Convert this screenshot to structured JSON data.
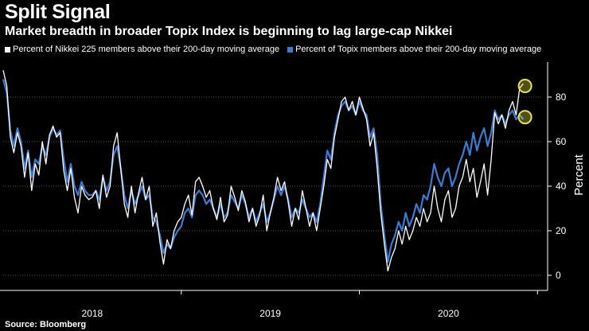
{
  "header": {
    "title": "Split Signal",
    "subtitle": "Market breadth in broader Topix Index is beginning to lag large-cap Nikkei"
  },
  "footer": {
    "source": "Source: Bloomberg"
  },
  "colors": {
    "nikkei": "#ffffff",
    "topix": "#3a7bd5",
    "marker": "#e8e24a",
    "background": "#000000"
  },
  "chart_data": {
    "type": "line",
    "title": "Split Signal",
    "xlabel": "",
    "ylabel": "Percent",
    "xlim": [
      2017.5,
      2020.53
    ],
    "ylim": [
      -5,
      95
    ],
    "yticks": [
      0,
      20,
      40,
      60,
      80
    ],
    "xtick_labels": [
      "2018",
      "2019",
      "2020"
    ],
    "xtick_centers": [
      2018.0,
      2019.0,
      2020.0
    ],
    "year_boundaries": [
      2018.5,
      2019.5,
      2020.5
    ],
    "legend": [
      "Percent of Nikkei 225 members above their 200-day moving average",
      "Percent of Topix members above their 200-day moving average"
    ],
    "series": [
      {
        "name": "Percent of Nikkei 225 members above their 200-day moving average",
        "color": "#ffffff",
        "points": [
          [
            2017.5,
            92
          ],
          [
            2017.52,
            85
          ],
          [
            2017.54,
            62
          ],
          [
            2017.56,
            55
          ],
          [
            2017.58,
            64
          ],
          [
            2017.6,
            58
          ],
          [
            2017.62,
            44
          ],
          [
            2017.64,
            55
          ],
          [
            2017.66,
            38
          ],
          [
            2017.68,
            50
          ],
          [
            2017.7,
            45
          ],
          [
            2017.72,
            60
          ],
          [
            2017.74,
            50
          ],
          [
            2017.76,
            63
          ],
          [
            2017.78,
            67
          ],
          [
            2017.8,
            62
          ],
          [
            2017.82,
            64
          ],
          [
            2017.84,
            47
          ],
          [
            2017.86,
            38
          ],
          [
            2017.88,
            48
          ],
          [
            2017.9,
            35
          ],
          [
            2017.92,
            28
          ],
          [
            2017.94,
            40
          ],
          [
            2017.96,
            36
          ],
          [
            2017.98,
            34
          ],
          [
            2018.0,
            35
          ],
          [
            2018.02,
            38
          ],
          [
            2018.04,
            30
          ],
          [
            2018.06,
            45
          ],
          [
            2018.08,
            35
          ],
          [
            2018.1,
            40
          ],
          [
            2018.12,
            58
          ],
          [
            2018.14,
            64
          ],
          [
            2018.16,
            48
          ],
          [
            2018.18,
            32
          ],
          [
            2018.2,
            26
          ],
          [
            2018.22,
            40
          ],
          [
            2018.24,
            28
          ],
          [
            2018.26,
            37
          ],
          [
            2018.28,
            44
          ],
          [
            2018.3,
            34
          ],
          [
            2018.32,
            40
          ],
          [
            2018.34,
            22
          ],
          [
            2018.36,
            28
          ],
          [
            2018.38,
            15
          ],
          [
            2018.4,
            5
          ],
          [
            2018.42,
            16
          ],
          [
            2018.44,
            12
          ],
          [
            2018.46,
            20
          ],
          [
            2018.48,
            24
          ],
          [
            2018.5,
            26
          ],
          [
            2018.52,
            32
          ],
          [
            2018.54,
            36
          ],
          [
            2018.56,
            27
          ],
          [
            2018.58,
            42
          ],
          [
            2018.6,
            44
          ],
          [
            2018.62,
            40
          ],
          [
            2018.64,
            35
          ],
          [
            2018.66,
            38
          ],
          [
            2018.68,
            30
          ],
          [
            2018.7,
            25
          ],
          [
            2018.72,
            35
          ],
          [
            2018.74,
            24
          ],
          [
            2018.76,
            27
          ],
          [
            2018.78,
            40
          ],
          [
            2018.8,
            35
          ],
          [
            2018.82,
            29
          ],
          [
            2018.84,
            38
          ],
          [
            2018.86,
            33
          ],
          [
            2018.88,
            24
          ],
          [
            2018.9,
            30
          ],
          [
            2018.92,
            22
          ],
          [
            2018.94,
            27
          ],
          [
            2018.96,
            36
          ],
          [
            2018.98,
            20
          ],
          [
            2019.0,
            28
          ],
          [
            2019.02,
            35
          ],
          [
            2019.04,
            44
          ],
          [
            2019.06,
            38
          ],
          [
            2019.08,
            42
          ],
          [
            2019.1,
            33
          ],
          [
            2019.12,
            22
          ],
          [
            2019.14,
            30
          ],
          [
            2019.16,
            25
          ],
          [
            2019.18,
            38
          ],
          [
            2019.2,
            30
          ],
          [
            2019.22,
            22
          ],
          [
            2019.24,
            28
          ],
          [
            2019.26,
            20
          ],
          [
            2019.28,
            30
          ],
          [
            2019.3,
            40
          ],
          [
            2019.32,
            52
          ],
          [
            2019.34,
            48
          ],
          [
            2019.36,
            62
          ],
          [
            2019.38,
            70
          ],
          [
            2019.4,
            78
          ],
          [
            2019.42,
            80
          ],
          [
            2019.44,
            74
          ],
          [
            2019.46,
            78
          ],
          [
            2019.48,
            72
          ],
          [
            2019.5,
            80
          ],
          [
            2019.52,
            75
          ],
          [
            2019.54,
            70
          ],
          [
            2019.56,
            58
          ],
          [
            2019.58,
            64
          ],
          [
            2019.6,
            48
          ],
          [
            2019.62,
            28
          ],
          [
            2019.64,
            14
          ],
          [
            2019.66,
            2
          ],
          [
            2019.68,
            8
          ],
          [
            2019.7,
            12
          ],
          [
            2019.72,
            20
          ],
          [
            2019.74,
            14
          ],
          [
            2019.76,
            22
          ],
          [
            2019.78,
            16
          ],
          [
            2019.8,
            20
          ],
          [
            2019.82,
            26
          ],
          [
            2019.84,
            22
          ],
          [
            2019.86,
            30
          ],
          [
            2019.88,
            24
          ],
          [
            2019.9,
            28
          ],
          [
            2019.92,
            40
          ],
          [
            2019.94,
            30
          ],
          [
            2019.96,
            24
          ],
          [
            2019.98,
            34
          ],
          [
            2020.0,
            38
          ],
          [
            2020.02,
            26
          ],
          [
            2020.04,
            30
          ],
          [
            2020.06,
            40
          ],
          [
            2020.08,
            44
          ],
          [
            2020.1,
            52
          ],
          [
            2020.12,
            42
          ],
          [
            2020.14,
            48
          ],
          [
            2020.16,
            35
          ],
          [
            2020.18,
            42
          ],
          [
            2020.2,
            50
          ],
          [
            2020.22,
            36
          ],
          [
            2020.24,
            52
          ],
          [
            2020.26,
            73
          ],
          [
            2020.28,
            68
          ],
          [
            2020.3,
            72
          ],
          [
            2020.32,
            66
          ],
          [
            2020.34,
            74
          ],
          [
            2020.36,
            78
          ],
          [
            2020.38,
            72
          ],
          [
            2020.4,
            84
          ],
          [
            2020.42,
            86
          ]
        ]
      },
      {
        "name": "Percent of Topix members above their 200-day moving average",
        "color": "#3a7bd5",
        "points": [
          [
            2017.5,
            88
          ],
          [
            2017.52,
            82
          ],
          [
            2017.54,
            65
          ],
          [
            2017.56,
            58
          ],
          [
            2017.58,
            66
          ],
          [
            2017.6,
            60
          ],
          [
            2017.62,
            48
          ],
          [
            2017.64,
            56
          ],
          [
            2017.66,
            44
          ],
          [
            2017.68,
            52
          ],
          [
            2017.7,
            50
          ],
          [
            2017.72,
            58
          ],
          [
            2017.74,
            54
          ],
          [
            2017.76,
            62
          ],
          [
            2017.78,
            66
          ],
          [
            2017.8,
            63
          ],
          [
            2017.82,
            65
          ],
          [
            2017.84,
            52
          ],
          [
            2017.86,
            42
          ],
          [
            2017.88,
            50
          ],
          [
            2017.9,
            40
          ],
          [
            2017.92,
            36
          ],
          [
            2017.94,
            42
          ],
          [
            2017.96,
            38
          ],
          [
            2017.98,
            36
          ],
          [
            2018.0,
            36
          ],
          [
            2018.02,
            38
          ],
          [
            2018.04,
            34
          ],
          [
            2018.06,
            44
          ],
          [
            2018.08,
            38
          ],
          [
            2018.1,
            42
          ],
          [
            2018.12,
            54
          ],
          [
            2018.14,
            58
          ],
          [
            2018.16,
            48
          ],
          [
            2018.18,
            36
          ],
          [
            2018.2,
            30
          ],
          [
            2018.22,
            38
          ],
          [
            2018.24,
            32
          ],
          [
            2018.26,
            36
          ],
          [
            2018.28,
            40
          ],
          [
            2018.3,
            34
          ],
          [
            2018.32,
            36
          ],
          [
            2018.34,
            26
          ],
          [
            2018.36,
            24
          ],
          [
            2018.38,
            18
          ],
          [
            2018.4,
            10
          ],
          [
            2018.42,
            14
          ],
          [
            2018.44,
            12
          ],
          [
            2018.46,
            17
          ],
          [
            2018.48,
            20
          ],
          [
            2018.5,
            22
          ],
          [
            2018.52,
            28
          ],
          [
            2018.54,
            30
          ],
          [
            2018.56,
            26
          ],
          [
            2018.58,
            36
          ],
          [
            2018.6,
            38
          ],
          [
            2018.62,
            36
          ],
          [
            2018.64,
            32
          ],
          [
            2018.66,
            34
          ],
          [
            2018.68,
            30
          ],
          [
            2018.7,
            26
          ],
          [
            2018.72,
            32
          ],
          [
            2018.74,
            26
          ],
          [
            2018.76,
            28
          ],
          [
            2018.78,
            36
          ],
          [
            2018.8,
            33
          ],
          [
            2018.82,
            30
          ],
          [
            2018.84,
            36
          ],
          [
            2018.86,
            32
          ],
          [
            2018.88,
            26
          ],
          [
            2018.9,
            30
          ],
          [
            2018.92,
            24
          ],
          [
            2018.94,
            28
          ],
          [
            2018.96,
            32
          ],
          [
            2018.98,
            24
          ],
          [
            2019.0,
            28
          ],
          [
            2019.02,
            34
          ],
          [
            2019.04,
            40
          ],
          [
            2019.06,
            36
          ],
          [
            2019.08,
            40
          ],
          [
            2019.1,
            34
          ],
          [
            2019.12,
            26
          ],
          [
            2019.14,
            30
          ],
          [
            2019.16,
            28
          ],
          [
            2019.18,
            34
          ],
          [
            2019.2,
            30
          ],
          [
            2019.22,
            26
          ],
          [
            2019.24,
            28
          ],
          [
            2019.26,
            24
          ],
          [
            2019.28,
            32
          ],
          [
            2019.3,
            44
          ],
          [
            2019.32,
            56
          ],
          [
            2019.34,
            52
          ],
          [
            2019.36,
            64
          ],
          [
            2019.38,
            72
          ],
          [
            2019.4,
            76
          ],
          [
            2019.42,
            78
          ],
          [
            2019.44,
            74
          ],
          [
            2019.46,
            76
          ],
          [
            2019.48,
            72
          ],
          [
            2019.5,
            78
          ],
          [
            2019.52,
            74
          ],
          [
            2019.54,
            72
          ],
          [
            2019.56,
            62
          ],
          [
            2019.58,
            66
          ],
          [
            2019.6,
            54
          ],
          [
            2019.62,
            32
          ],
          [
            2019.64,
            18
          ],
          [
            2019.66,
            6
          ],
          [
            2019.68,
            14
          ],
          [
            2019.7,
            18
          ],
          [
            2019.72,
            24
          ],
          [
            2019.74,
            20
          ],
          [
            2019.76,
            28
          ],
          [
            2019.78,
            22
          ],
          [
            2019.8,
            26
          ],
          [
            2019.82,
            32
          ],
          [
            2019.84,
            28
          ],
          [
            2019.86,
            36
          ],
          [
            2019.88,
            34
          ],
          [
            2019.9,
            40
          ],
          [
            2019.92,
            50
          ],
          [
            2019.94,
            44
          ],
          [
            2019.96,
            40
          ],
          [
            2019.98,
            46
          ],
          [
            2020.0,
            48
          ],
          [
            2020.02,
            40
          ],
          [
            2020.04,
            44
          ],
          [
            2020.06,
            50
          ],
          [
            2020.08,
            54
          ],
          [
            2020.1,
            60
          ],
          [
            2020.12,
            54
          ],
          [
            2020.14,
            64
          ],
          [
            2020.16,
            56
          ],
          [
            2020.18,
            62
          ],
          [
            2020.2,
            66
          ],
          [
            2020.22,
            58
          ],
          [
            2020.24,
            64
          ],
          [
            2020.26,
            74
          ],
          [
            2020.28,
            70
          ],
          [
            2020.3,
            72
          ],
          [
            2020.32,
            68
          ],
          [
            2020.34,
            72
          ],
          [
            2020.36,
            74
          ],
          [
            2020.38,
            70
          ],
          [
            2020.4,
            72
          ],
          [
            2020.42,
            70
          ]
        ]
      }
    ],
    "highlight_markers": [
      {
        "series": "Percent of Nikkei 225 members above their 200-day moving average",
        "x": 2020.43,
        "y": 85
      },
      {
        "series": "Percent of Topix members above their 200-day moving average",
        "x": 2020.43,
        "y": 71
      }
    ]
  }
}
